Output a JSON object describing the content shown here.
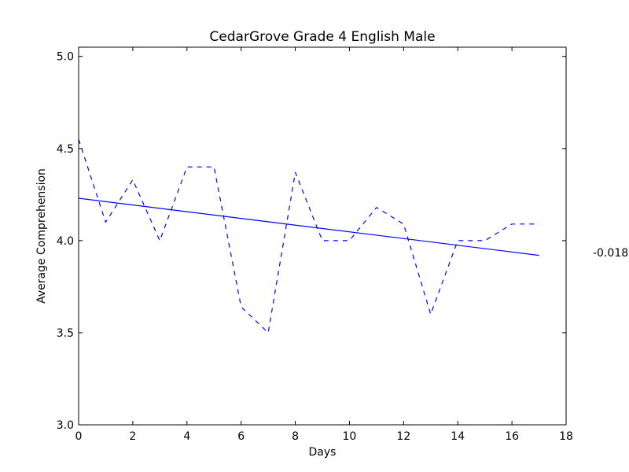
{
  "chart_data": {
    "type": "line",
    "title": "CedarGrove Grade 4 English Male",
    "xlabel": "Days",
    "ylabel": "Average Comprehension",
    "xlim": [
      0,
      18
    ],
    "ylim": [
      3.0,
      5.05
    ],
    "xticks": [
      0,
      2,
      4,
      6,
      8,
      10,
      12,
      14,
      16,
      18
    ],
    "xtick_labels": [
      "0",
      "2",
      "4",
      "6",
      "8",
      "10",
      "12",
      "14",
      "16",
      "18"
    ],
    "yticks": [
      3.0,
      3.5,
      4.0,
      4.5,
      5.0
    ],
    "ytick_labels": [
      "3.0",
      "3.5",
      "4.0",
      "4.5",
      "5.0"
    ],
    "grid": false,
    "series": [
      {
        "style": "dashed",
        "color": "#0000ff",
        "x": [
          0,
          1,
          2,
          3,
          4,
          5,
          6,
          7,
          8,
          9,
          10,
          11,
          12,
          13,
          14,
          15,
          16,
          17
        ],
        "y": [
          4.55,
          4.1,
          4.33,
          4.0,
          4.4,
          4.4,
          3.64,
          3.5,
          4.37,
          4.0,
          4.0,
          4.18,
          4.09,
          3.6,
          4.0,
          4.0,
          4.09,
          4.09
        ]
      },
      {
        "style": "solid",
        "color": "#0000ff",
        "x": [
          0,
          17
        ],
        "y": [
          4.23,
          3.92
        ]
      }
    ],
    "annotation": "-0.018"
  }
}
